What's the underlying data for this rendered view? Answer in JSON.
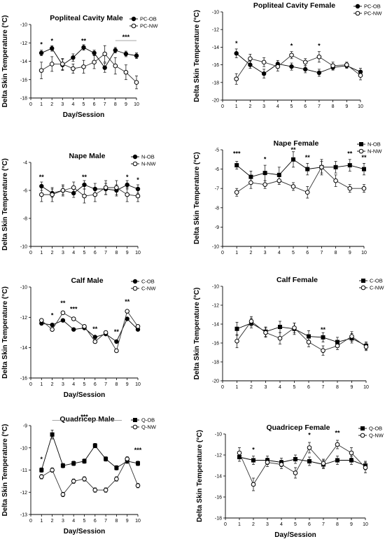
{
  "chart_data": [
    {
      "type": "line",
      "title": "Popliteal Cavity Male",
      "xlabel": "Day/Session",
      "ylabel": "Delta Skin Temperature (°C)",
      "x": [
        1,
        2,
        3,
        4,
        5,
        6,
        7,
        8,
        9,
        10
      ],
      "xlim": [
        0,
        10
      ],
      "ylim": [
        -18,
        -10
      ],
      "yticks": [
        -10,
        -12,
        -14,
        -16,
        -18
      ],
      "legend_position": "top-right",
      "series": [
        {
          "name": "PC-OB",
          "marker": "filled-circle",
          "values": [
            -13.1,
            -12.6,
            -14.4,
            -13.6,
            -12.5,
            -13.1,
            -14.7,
            -12.8,
            -13.2,
            -13.4
          ],
          "err": [
            0.3,
            0.3,
            0.6,
            0.4,
            0.3,
            0.3,
            0.5,
            0.3,
            0.3,
            0.3
          ]
        },
        {
          "name": "PC-NW",
          "marker": "open-circle",
          "values": [
            -15.0,
            -14.3,
            -14.3,
            -14.8,
            -14.6,
            -14.1,
            -13.2,
            -14.5,
            -15.2,
            -16.3
          ],
          "err": [
            0.9,
            0.8,
            0.6,
            0.5,
            0.7,
            0.7,
            0.9,
            0.9,
            0.8,
            0.7
          ]
        }
      ],
      "annotations": [
        {
          "text": "*",
          "x": 1,
          "y": -12.4
        },
        {
          "text": "*",
          "x": 2,
          "y": -12.0
        },
        {
          "text": "**",
          "x": 5,
          "y": -12.0
        },
        {
          "text": "***",
          "x": 9,
          "y": -11.6,
          "bracket": [
            8,
            10
          ]
        }
      ]
    },
    {
      "type": "line",
      "title": "Popliteal Cavity Female",
      "xlabel": "",
      "ylabel": "Delta Skin Temperature (°C)",
      "x": [
        1,
        2,
        3,
        4,
        5,
        6,
        7,
        8,
        9,
        10
      ],
      "xlim": [
        0,
        10
      ],
      "ylim": [
        -20,
        -10
      ],
      "yticks": [
        -10,
        -12,
        -14,
        -16,
        -18,
        -20
      ],
      "legend_position": "top-right",
      "series": [
        {
          "name": "PC-OB",
          "marker": "filled-circle",
          "values": [
            -14.7,
            -16.0,
            -17.0,
            -15.9,
            -16.2,
            -16.5,
            -16.9,
            -16.3,
            -16.1,
            -16.8
          ],
          "err": [
            0.5,
            0.4,
            0.5,
            0.4,
            0.4,
            0.4,
            0.4,
            0.3,
            0.3,
            0.4
          ]
        },
        {
          "name": "PC-NW",
          "marker": "open-circle",
          "values": [
            -17.6,
            -15.3,
            -15.7,
            -16.2,
            -14.9,
            -15.7,
            -15.1,
            -16.1,
            -16.0,
            -17.2
          ],
          "err": [
            0.6,
            0.5,
            0.5,
            0.5,
            0.4,
            0.4,
            0.6,
            0.4,
            0.3,
            0.5
          ]
        }
      ],
      "annotations": [
        {
          "text": "*",
          "x": 1,
          "y": -13.8
        },
        {
          "text": "*",
          "x": 5,
          "y": -14.1
        },
        {
          "text": "*",
          "x": 7,
          "y": -14.1
        }
      ]
    },
    {
      "type": "line",
      "title": "Nape Male",
      "xlabel": "",
      "ylabel": "Delta Skin Temperature (°C)",
      "x": [
        1,
        2,
        3,
        4,
        5,
        6,
        7,
        8,
        9,
        10
      ],
      "xlim": [
        0,
        10
      ],
      "ylim": [
        -10,
        -4
      ],
      "yticks": [
        -4,
        -6,
        -8,
        -10
      ],
      "legend_position": "top-right",
      "series": [
        {
          "name": "N-OB",
          "marker": "filled-circle",
          "values": [
            -5.7,
            -6.2,
            -6.0,
            -6.2,
            -5.6,
            -5.9,
            -5.9,
            -6.0,
            -5.6,
            -5.9
          ],
          "err": [
            0.3,
            0.3,
            0.3,
            0.3,
            0.3,
            0.4,
            0.4,
            0.4,
            0.3,
            0.3
          ]
        },
        {
          "name": "N-NW",
          "marker": "open-circle",
          "values": [
            -6.3,
            -6.3,
            -6.0,
            -5.8,
            -6.4,
            -6.3,
            -5.8,
            -5.8,
            -6.3,
            -6.4
          ],
          "err": [
            0.5,
            0.5,
            0.4,
            0.4,
            0.5,
            0.5,
            0.5,
            0.5,
            0.5,
            0.4
          ]
        }
      ],
      "annotations": [
        {
          "text": "**",
          "x": 1,
          "y": -5.2
        },
        {
          "text": "**",
          "x": 5,
          "y": -5.2
        },
        {
          "text": "*",
          "x": 9,
          "y": -5.2
        },
        {
          "text": "*",
          "x": 10,
          "y": -5.4
        }
      ]
    },
    {
      "type": "line",
      "title": "Nape Female",
      "xlabel": "",
      "ylabel": "Delta Skin Temperature (°C)",
      "x": [
        1,
        2,
        3,
        4,
        5,
        6,
        7,
        8,
        9,
        10
      ],
      "xlim": [
        0,
        10
      ],
      "ylim": [
        -10,
        -5
      ],
      "yticks": [
        -5,
        -6,
        -7,
        -8,
        -9,
        -10
      ],
      "legend_position": "top-right",
      "series": [
        {
          "name": "N-OB",
          "marker": "filled-square",
          "values": [
            -5.8,
            -6.4,
            -6.2,
            -6.3,
            -5.5,
            -6.0,
            -5.9,
            -5.9,
            -5.8,
            -6.0
          ],
          "err": [
            0.2,
            0.3,
            0.4,
            0.4,
            0.4,
            0.3,
            0.4,
            0.3,
            0.3,
            0.3
          ]
        },
        {
          "name": "N-NW",
          "marker": "open-circle",
          "values": [
            -7.2,
            -6.7,
            -6.8,
            -6.6,
            -6.9,
            -7.2,
            -5.9,
            -6.6,
            -7.0,
            -7.0
          ],
          "err": [
            0.2,
            0.3,
            0.2,
            0.2,
            0.2,
            0.3,
            0.3,
            0.3,
            0.2,
            0.2
          ]
        }
      ],
      "annotations": [
        {
          "text": "***",
          "x": 1,
          "y": -5.3
        },
        {
          "text": "*",
          "x": 3,
          "y": -5.6
        },
        {
          "text": "**",
          "x": 5,
          "y": -5.1
        },
        {
          "text": "**",
          "x": 6,
          "y": -5.5
        },
        {
          "text": "**",
          "x": 9,
          "y": -5.3
        },
        {
          "text": "**",
          "x": 10,
          "y": -5.5
        }
      ]
    },
    {
      "type": "line",
      "title": "Calf Male",
      "xlabel": "Day/Session",
      "ylabel": "Delta Skin Temperature (°C)",
      "x": [
        1,
        2,
        3,
        4,
        5,
        6,
        7,
        8,
        9,
        10
      ],
      "xlim": [
        0,
        10
      ],
      "ylim": [
        -16,
        -10
      ],
      "yticks": [
        -10,
        -12,
        -14,
        -16
      ],
      "legend_position": "top-right",
      "series": [
        {
          "name": "C-OB",
          "marker": "filled-circle",
          "values": [
            -12.4,
            -12.5,
            -12.2,
            -12.8,
            -12.7,
            -13.3,
            -13.1,
            -13.6,
            -12.1,
            -12.8
          ],
          "err": [
            0.1,
            0.1,
            0.1,
            0.1,
            0.1,
            0.1,
            0.1,
            0.1,
            0.1,
            0.1
          ]
        },
        {
          "name": "C-NW",
          "marker": "open-circle",
          "values": [
            -12.2,
            -12.8,
            -11.7,
            -12.1,
            -12.6,
            -13.6,
            -13.0,
            -14.2,
            -11.6,
            -12.6
          ],
          "err": [
            0.1,
            0.1,
            0.1,
            0.1,
            0.1,
            0.1,
            0.1,
            0.1,
            0.1,
            0.1
          ]
        }
      ],
      "annotations": [
        {
          "text": "*",
          "x": 2,
          "y": -12.0
        },
        {
          "text": "**",
          "x": 3,
          "y": -11.2
        },
        {
          "text": "***",
          "x": 4,
          "y": -11.6
        },
        {
          "text": "**",
          "x": 6,
          "y": -12.9
        },
        {
          "text": "**",
          "x": 8,
          "y": -13.1
        },
        {
          "text": "**",
          "x": 9,
          "y": -11.1
        }
      ]
    },
    {
      "type": "line",
      "title": "Calf Female",
      "xlabel": "",
      "ylabel": "Delta Skin Temperature (°C)",
      "x": [
        1,
        2,
        3,
        4,
        5,
        6,
        7,
        8,
        9,
        10
      ],
      "xlim": [
        0,
        10
      ],
      "ylim": [
        -20,
        -10
      ],
      "yticks": [
        -10,
        -12,
        -14,
        -16,
        -18,
        -20
      ],
      "legend_position": "top-right",
      "series": [
        {
          "name": "C-OB",
          "marker": "filled-square",
          "values": [
            -14.5,
            -13.9,
            -14.8,
            -14.3,
            -14.5,
            -15.3,
            -15.4,
            -15.9,
            -15.5,
            -16.3
          ],
          "err": [
            0.7,
            0.5,
            0.5,
            0.6,
            0.6,
            0.6,
            0.5,
            0.5,
            0.5,
            0.4
          ]
        },
        {
          "name": "C-NW",
          "marker": "open-circle",
          "values": [
            -15.8,
            -13.7,
            -14.9,
            -15.5,
            -14.4,
            -15.9,
            -16.8,
            -16.3,
            -15.3,
            -16.4
          ],
          "err": [
            0.7,
            0.5,
            0.5,
            0.6,
            0.5,
            0.5,
            0.5,
            0.4,
            0.5,
            0.4
          ]
        }
      ],
      "annotations": [
        {
          "text": "**",
          "x": 7,
          "y": -14.8
        }
      ]
    },
    {
      "type": "line",
      "title": "Quadricep Male",
      "xlabel": "Day/Session",
      "ylabel": "Delta Skin Temperature (°C)",
      "x": [
        1,
        2,
        3,
        4,
        5,
        6,
        7,
        8,
        9,
        10
      ],
      "xlim": [
        0,
        10
      ],
      "ylim": [
        -13,
        -9
      ],
      "yticks": [
        -9,
        -10,
        -11,
        -12,
        -13
      ],
      "legend_position": "top-right",
      "series": [
        {
          "name": "Q-OB",
          "marker": "filled-square",
          "values": [
            -11.0,
            -9.4,
            -10.8,
            -10.7,
            -10.6,
            -9.9,
            -10.5,
            -10.9,
            -10.6,
            -10.7
          ],
          "err": [
            0.1,
            0.2,
            0.1,
            0.1,
            0.1,
            0.1,
            0.1,
            0.1,
            0.1,
            0.1
          ]
        },
        {
          "name": "Q-NW",
          "marker": "open-circle",
          "values": [
            -11.3,
            -11.0,
            -12.1,
            -11.5,
            -11.4,
            -11.9,
            -11.9,
            -11.4,
            -10.5,
            -11.7
          ],
          "err": [
            0.1,
            0.1,
            0.1,
            0.1,
            0.1,
            0.1,
            0.1,
            0.1,
            0.1,
            0.1
          ]
        }
      ],
      "annotations": [
        {
          "text": "*",
          "x": 1,
          "y": -10.6
        },
        {
          "text": "***",
          "x": 5,
          "y": -8.7,
          "bracket": [
            2,
            8.5
          ]
        },
        {
          "text": "***",
          "x": 10,
          "y": -10.2
        }
      ]
    },
    {
      "type": "line",
      "title": "Quadricep Female",
      "xlabel": "Day/Session",
      "ylabel": "Delta Skin Temperature (°C)",
      "x": [
        1,
        2,
        3,
        4,
        5,
        6,
        7,
        8,
        9,
        10
      ],
      "xlim": [
        0,
        10
      ],
      "ylim": [
        -18,
        -10
      ],
      "yticks": [
        -10,
        -12,
        -14,
        -16,
        -18
      ],
      "legend_position": "top-right",
      "series": [
        {
          "name": "Q-OB",
          "marker": "filled-square",
          "values": [
            -12.2,
            -12.5,
            -12.5,
            -12.7,
            -12.4,
            -12.6,
            -12.9,
            -12.5,
            -12.5,
            -13.0
          ],
          "err": [
            0.4,
            0.4,
            0.4,
            0.4,
            0.4,
            0.4,
            0.4,
            0.4,
            0.4,
            0.4
          ]
        },
        {
          "name": "Q-NW",
          "marker": "open-circle",
          "values": [
            -11.8,
            -14.8,
            -12.7,
            -12.9,
            -13.7,
            -11.3,
            -12.8,
            -11.0,
            -11.8,
            -13.2
          ],
          "err": [
            0.5,
            0.6,
            0.4,
            0.4,
            0.5,
            0.5,
            0.4,
            0.4,
            0.5,
            0.5
          ]
        }
      ],
      "annotations": [
        {
          "text": "*",
          "x": 2,
          "y": -11.7
        },
        {
          "text": "*",
          "x": 6,
          "y": -10.3
        },
        {
          "text": "**",
          "x": 8,
          "y": -10.1
        }
      ]
    }
  ]
}
